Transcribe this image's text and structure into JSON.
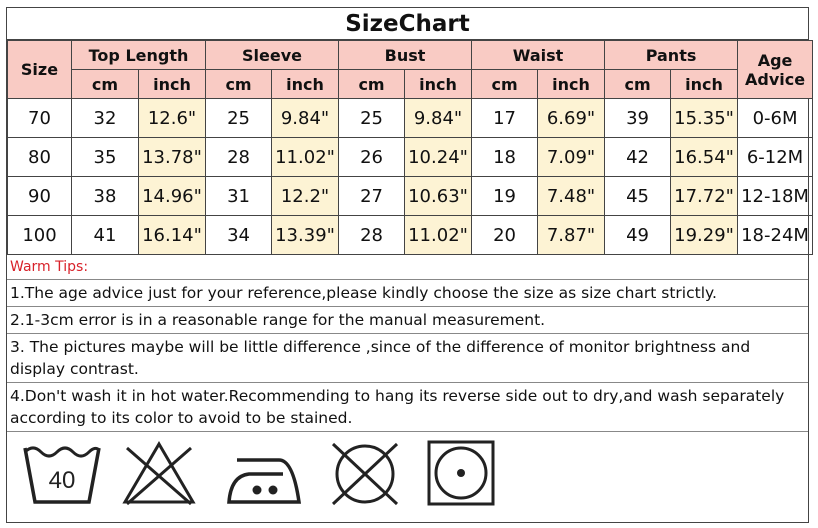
{
  "title": "SizeChart",
  "headers": {
    "size": "Size",
    "top_length": "Top Length",
    "sleeve": "Sleeve",
    "bust": "Bust",
    "waist": "Waist",
    "pants": "Pants",
    "age_line1": "Age",
    "age_line2": "Advice",
    "cm": "cm",
    "inch": "inch"
  },
  "rows": [
    {
      "size": "70",
      "top_cm": "32",
      "top_in": "12.6\"",
      "sleeve_cm": "25",
      "sleeve_in": "9.84\"",
      "bust_cm": "25",
      "bust_in": "9.84\"",
      "waist_cm": "17",
      "waist_in": "6.69\"",
      "pants_cm": "39",
      "pants_in": "15.35\"",
      "age": "0-6M"
    },
    {
      "size": "80",
      "top_cm": "35",
      "top_in": "13.78\"",
      "sleeve_cm": "28",
      "sleeve_in": "11.02\"",
      "bust_cm": "26",
      "bust_in": "10.24\"",
      "waist_cm": "18",
      "waist_in": "7.09\"",
      "pants_cm": "42",
      "pants_in": "16.54\"",
      "age": "6-12M"
    },
    {
      "size": "90",
      "top_cm": "38",
      "top_in": "14.96\"",
      "sleeve_cm": "31",
      "sleeve_in": "12.2\"",
      "bust_cm": "27",
      "bust_in": "10.63\"",
      "waist_cm": "19",
      "waist_in": "7.48\"",
      "pants_cm": "45",
      "pants_in": "17.72\"",
      "age": "12-18M"
    },
    {
      "size": "100",
      "top_cm": "41",
      "top_in": "16.14\"",
      "sleeve_cm": "34",
      "sleeve_in": "13.39\"",
      "bust_cm": "28",
      "bust_in": "11.02\"",
      "waist_cm": "20",
      "waist_in": "7.87\"",
      "pants_cm": "49",
      "pants_in": "19.29\"",
      "age": "18-24M"
    }
  ],
  "warm_tips_label": "Warm Tips:",
  "tips": [
    "1.The age advice just for your reference,please kindly choose the size as size chart strictly.",
    "2.1-3cm error is in a reasonable range for the manual measurement.",
    "3. The pictures maybe will be little difference ,since of the difference of monitor brightness and display contrast.",
    "4.Don't wash it in hot water.Recommending to hang its reverse side out to dry,and wash separately according to its color to avoid to be stained."
  ],
  "care_icons": {
    "wash_temp": "40",
    "names": [
      "wash-40-icon",
      "do-not-bleach-icon",
      "iron-medium-icon",
      "do-not-tumble-dry-icon",
      "dry-clean-icon"
    ]
  },
  "colors": {
    "header_bg": "#f9cbc4",
    "inch_bg": "#fdf3d4",
    "warm_tips": "#d8222a"
  }
}
